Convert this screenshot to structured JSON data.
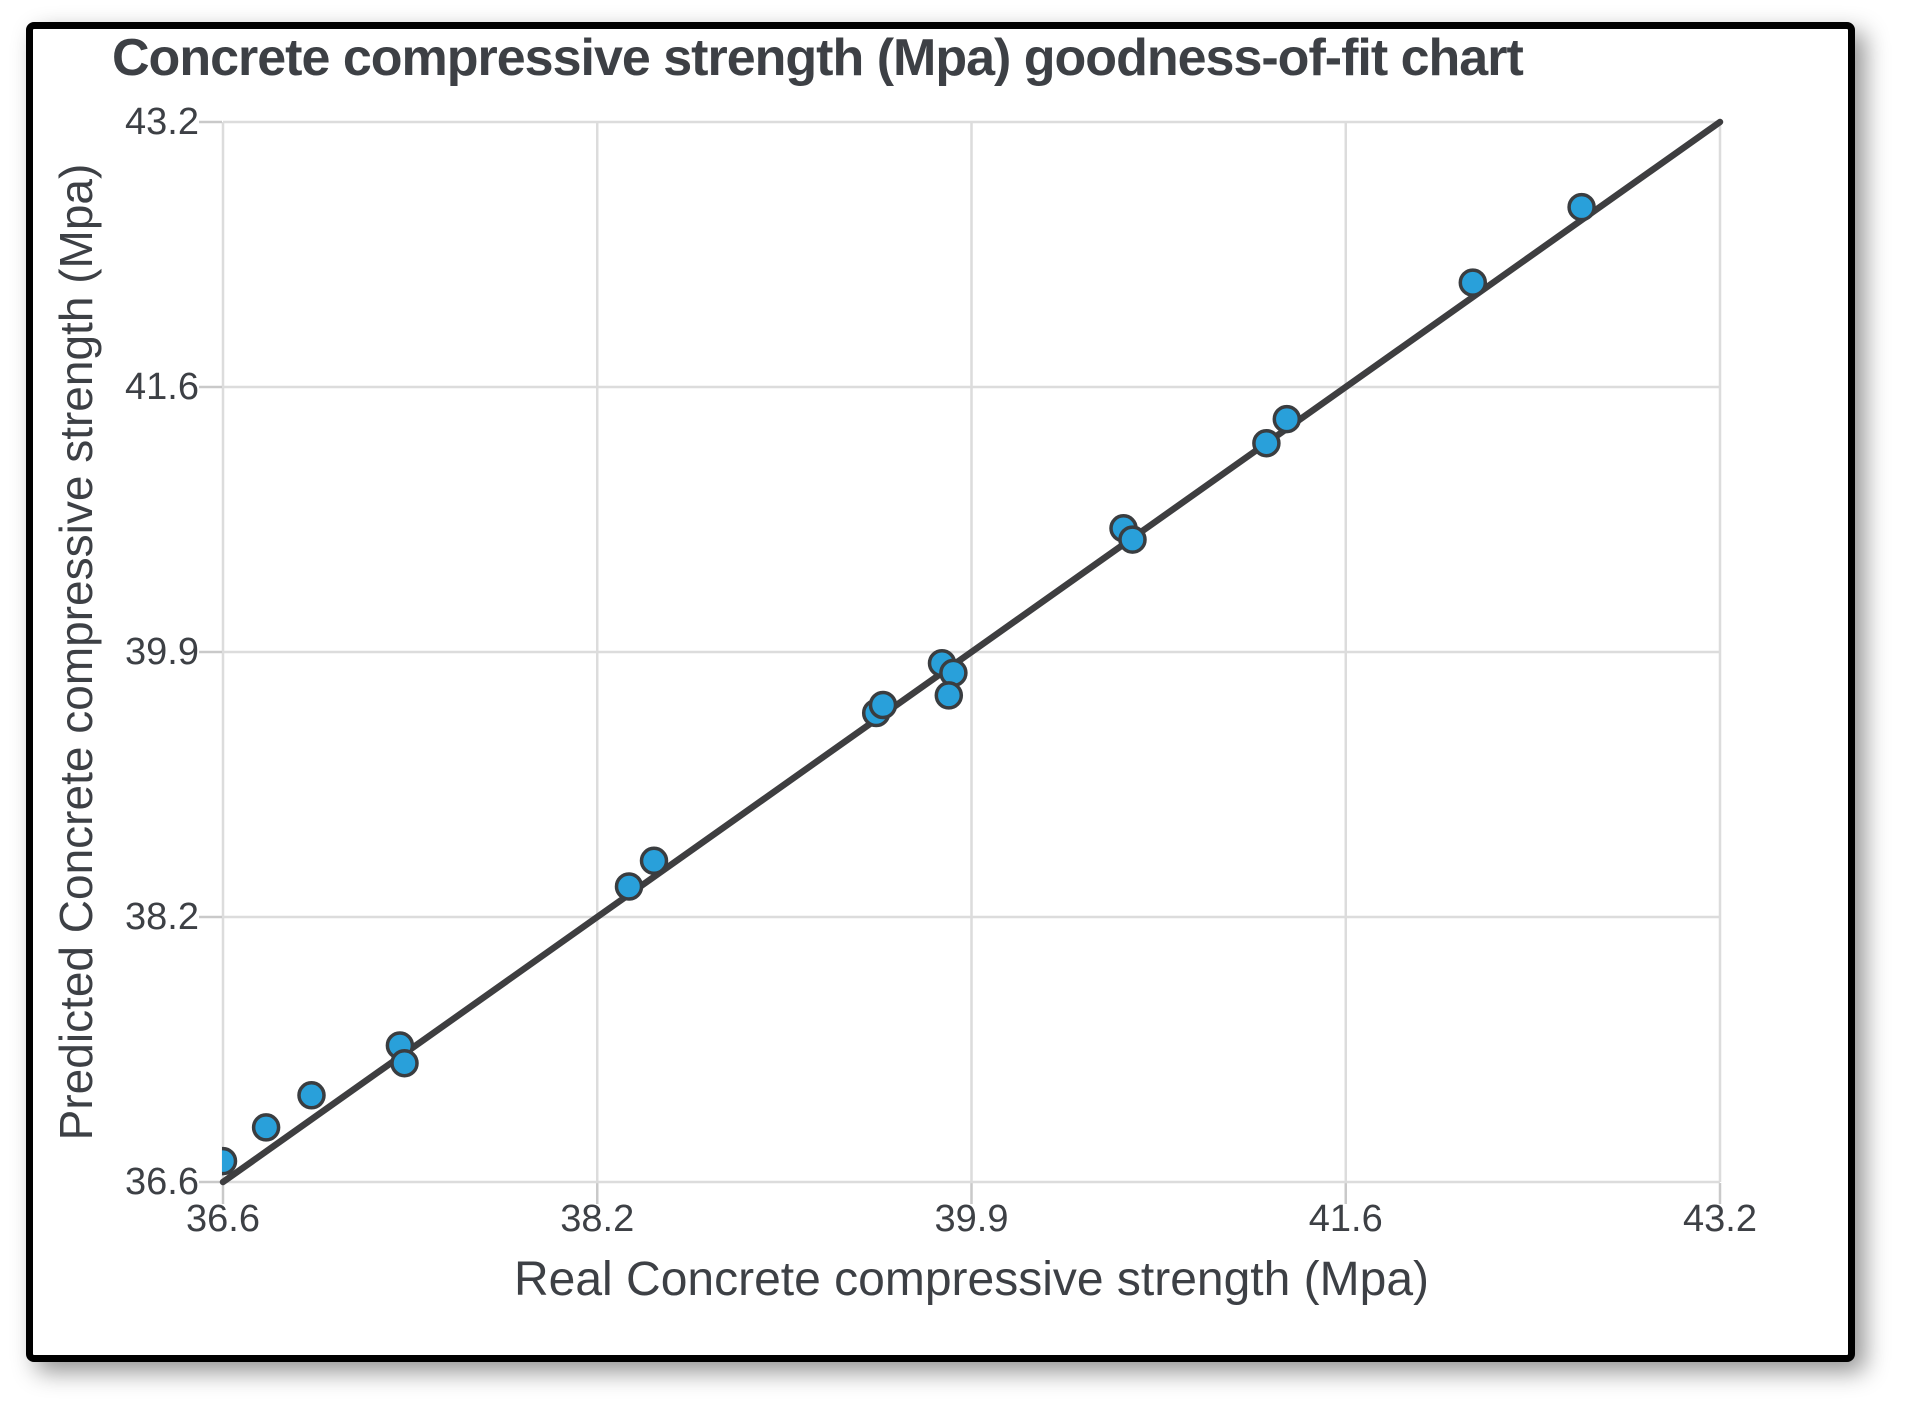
{
  "chart_data": {
    "type": "scatter",
    "title": "Concrete compressive strength (Mpa) goodness-of-fit chart",
    "xlabel": "Real Concrete compressive strength (Mpa)",
    "ylabel": "Predicted Concrete compressive strength (Mpa)",
    "xlim": [
      36.6,
      43.2
    ],
    "ylim": [
      36.6,
      43.2
    ],
    "xticks": [
      "36.6",
      "38.2",
      "39.9",
      "41.6",
      "43.2"
    ],
    "yticks": [
      "36.6",
      "38.2",
      "39.9",
      "41.6",
      "43.2"
    ],
    "grid": true,
    "legend": "none",
    "fit_line": {
      "x1": 36.6,
      "y1": 36.6,
      "x2": 43.2,
      "y2": 43.2
    },
    "series": [
      {
        "name": "predicted-vs-real",
        "marker": "circle",
        "points": [
          [
            36.6,
            36.73
          ],
          [
            36.79,
            36.94
          ],
          [
            36.99,
            37.14
          ],
          [
            37.38,
            37.45
          ],
          [
            37.4,
            37.34
          ],
          [
            38.39,
            38.44
          ],
          [
            38.5,
            38.6
          ],
          [
            39.48,
            39.52
          ],
          [
            39.51,
            39.57
          ],
          [
            39.77,
            39.83
          ],
          [
            39.82,
            39.77
          ],
          [
            39.8,
            39.63
          ],
          [
            40.57,
            40.67
          ],
          [
            40.61,
            40.6
          ],
          [
            41.2,
            41.2
          ],
          [
            41.29,
            41.35
          ],
          [
            42.11,
            42.2
          ],
          [
            42.59,
            42.67
          ]
        ]
      }
    ],
    "colors": {
      "marker_fill": "#29A0DA",
      "marker_stroke": "#3A3D40",
      "fit_line": "#3E3E40",
      "grid": "#DCDCDC",
      "tick_mark": "#C9C9C9",
      "text": "#3D4045",
      "card_border": "#000000",
      "background": "#FFFFFF"
    }
  }
}
